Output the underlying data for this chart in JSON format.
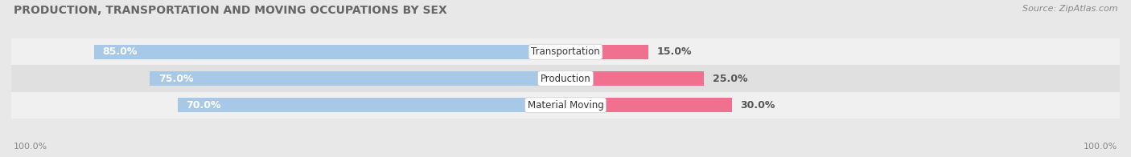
{
  "title": "PRODUCTION, TRANSPORTATION AND MOVING OCCUPATIONS BY SEX",
  "source": "Source: ZipAtlas.com",
  "categories": [
    "Transportation",
    "Production",
    "Material Moving"
  ],
  "male_pct": [
    85.0,
    75.0,
    70.0
  ],
  "female_pct": [
    15.0,
    25.0,
    30.0
  ],
  "male_color": "#a8c8e8",
  "female_color": "#f07090",
  "row_bg_even": "#f0f0f0",
  "row_bg_odd": "#e0e0e0",
  "fig_bg": "#e8e8e8",
  "title_fontsize": 10,
  "source_fontsize": 8,
  "bar_height": 0.55,
  "bar_label_fontsize": 9,
  "cat_label_fontsize": 8.5,
  "legend_fontsize": 9,
  "left_label": "100.0%",
  "right_label": "100.0%"
}
